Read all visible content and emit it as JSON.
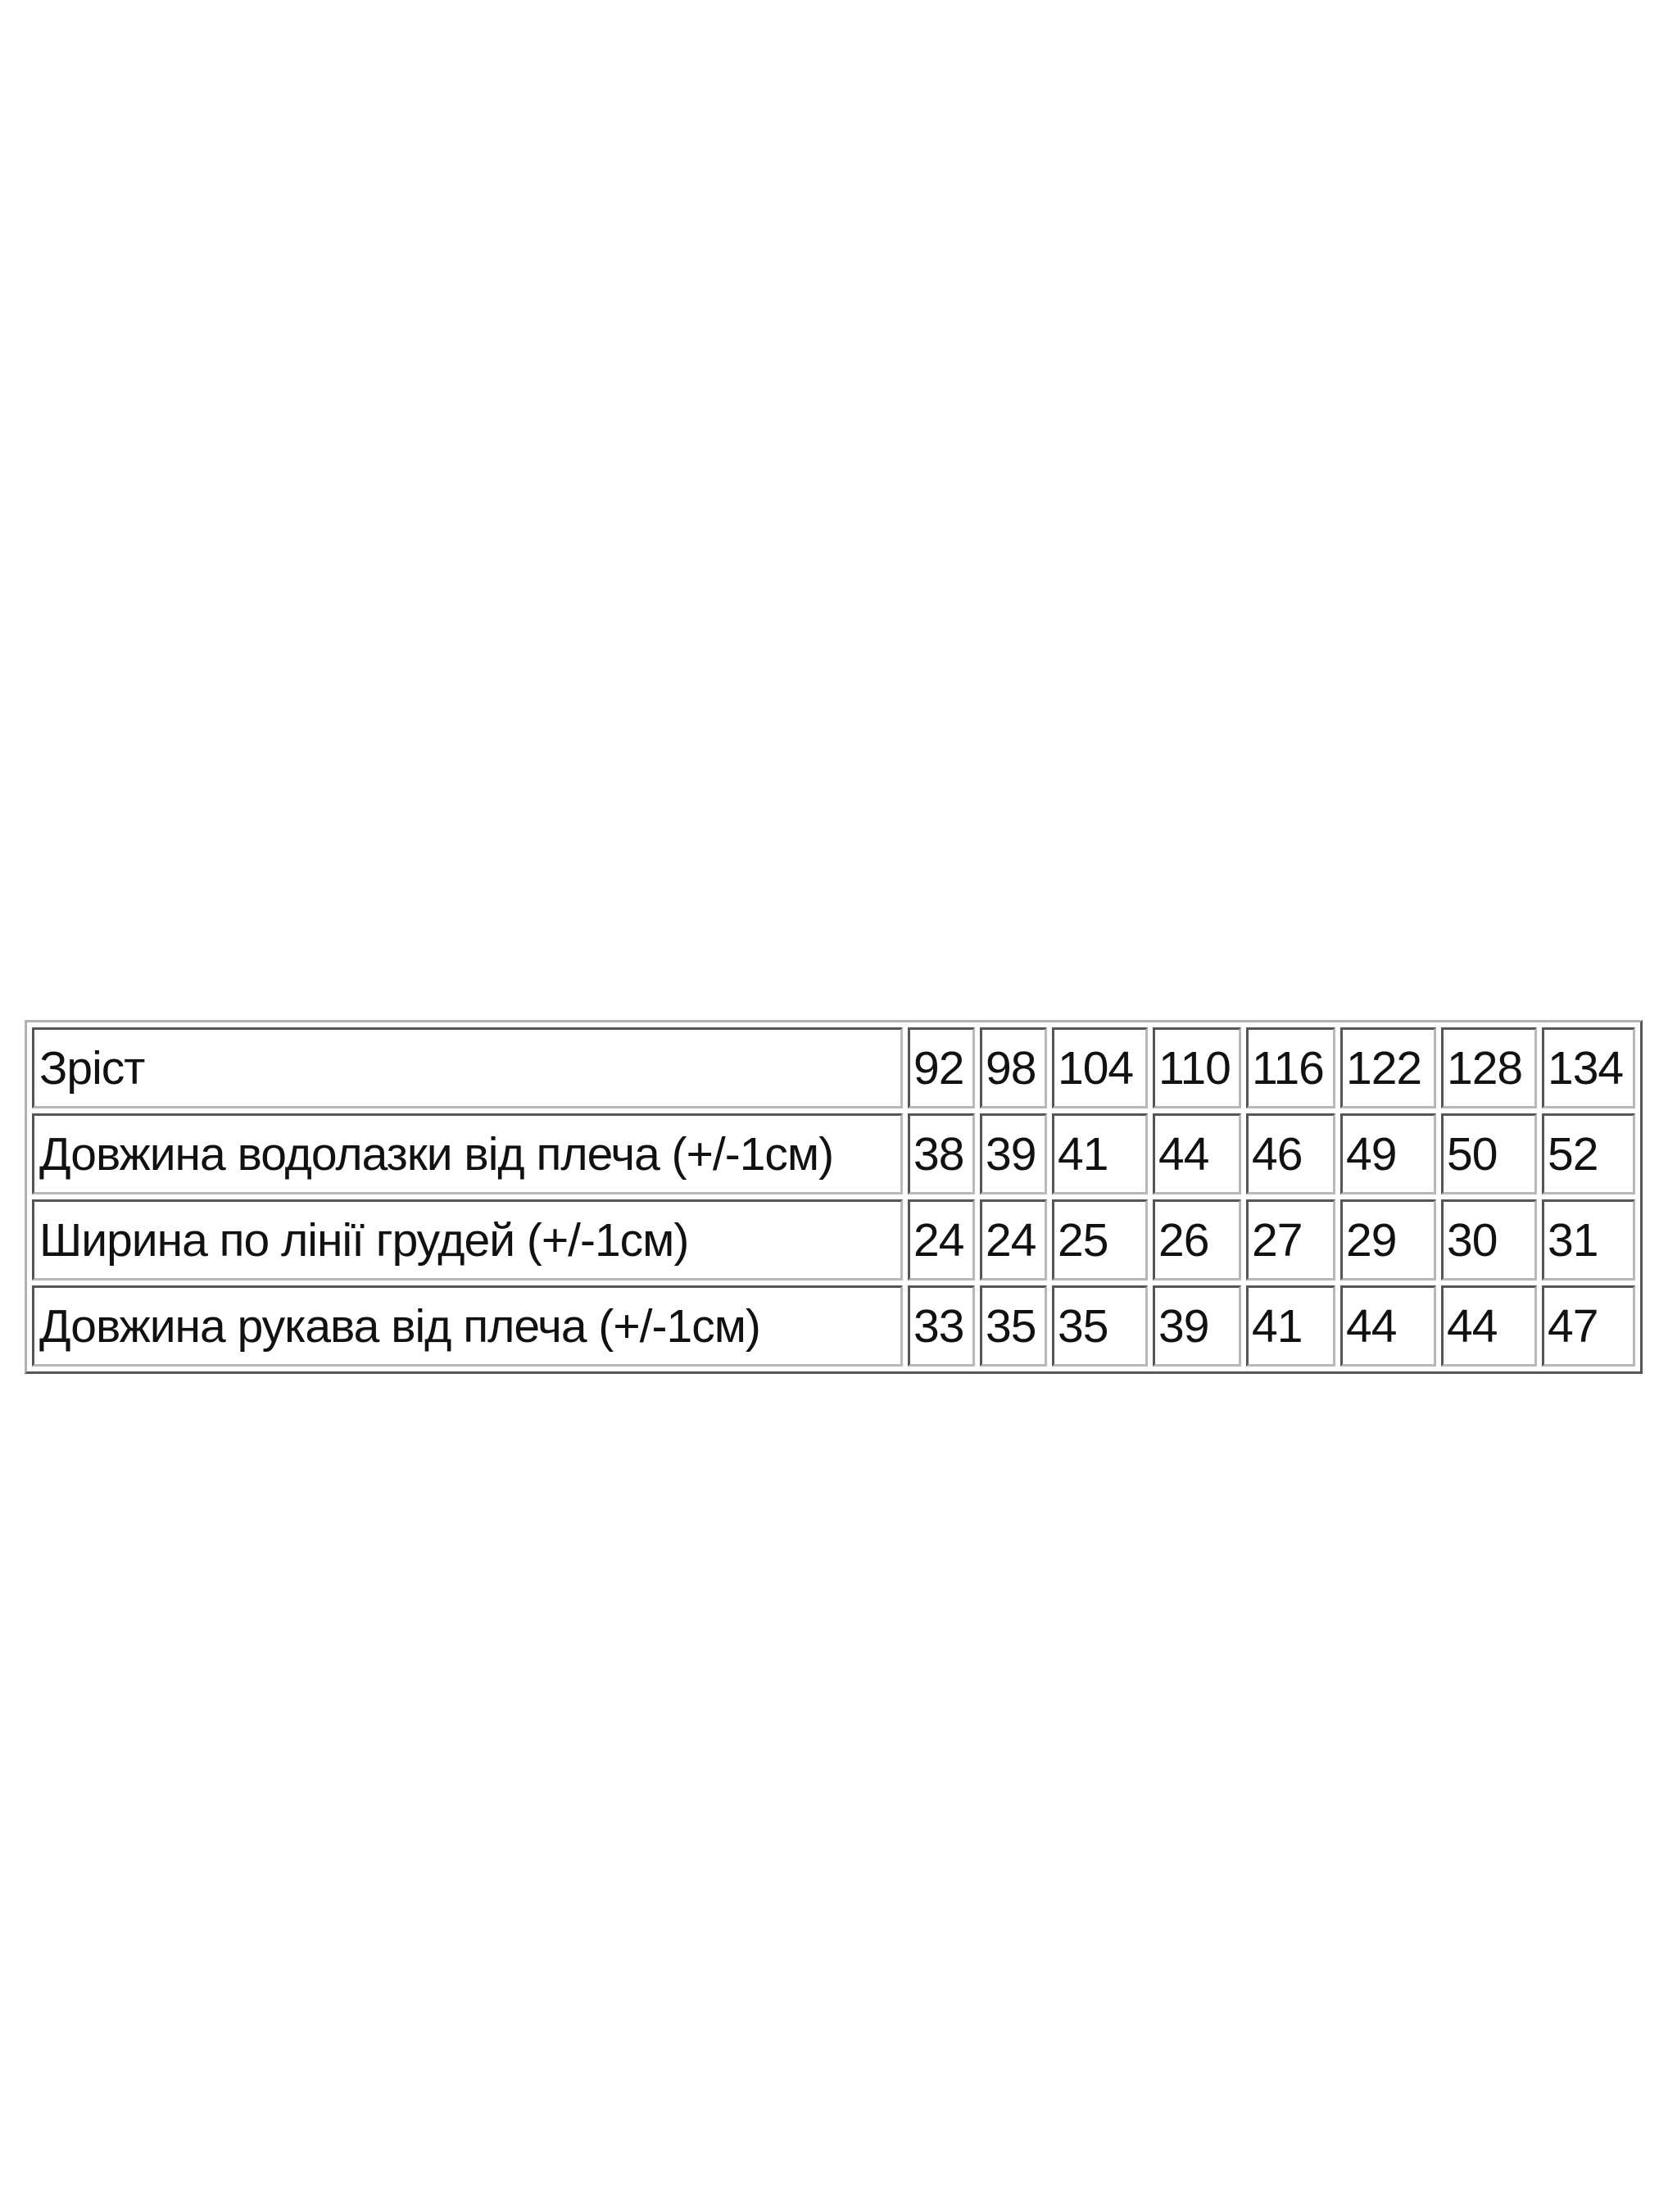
{
  "table": {
    "rows": [
      {
        "label": "Зріст",
        "values": [
          "92",
          "98",
          "104",
          "110",
          "116",
          "122",
          "128",
          "134"
        ]
      },
      {
        "label": "Довжина водолазки від плеча (+/-1см)",
        "values": [
          "38",
          "39",
          "41",
          "44",
          "46",
          "49",
          "50",
          "52"
        ]
      },
      {
        "label": "Ширина по лінії грудей (+/-1см)",
        "values": [
          "24",
          "24",
          "25",
          "26",
          "27",
          "29",
          "30",
          "31"
        ]
      },
      {
        "label": "Довжина рукава від плеча (+/-1см)",
        "values": [
          "33",
          "35",
          "35",
          "39",
          "41",
          "44",
          "44",
          "47"
        ]
      }
    ]
  }
}
